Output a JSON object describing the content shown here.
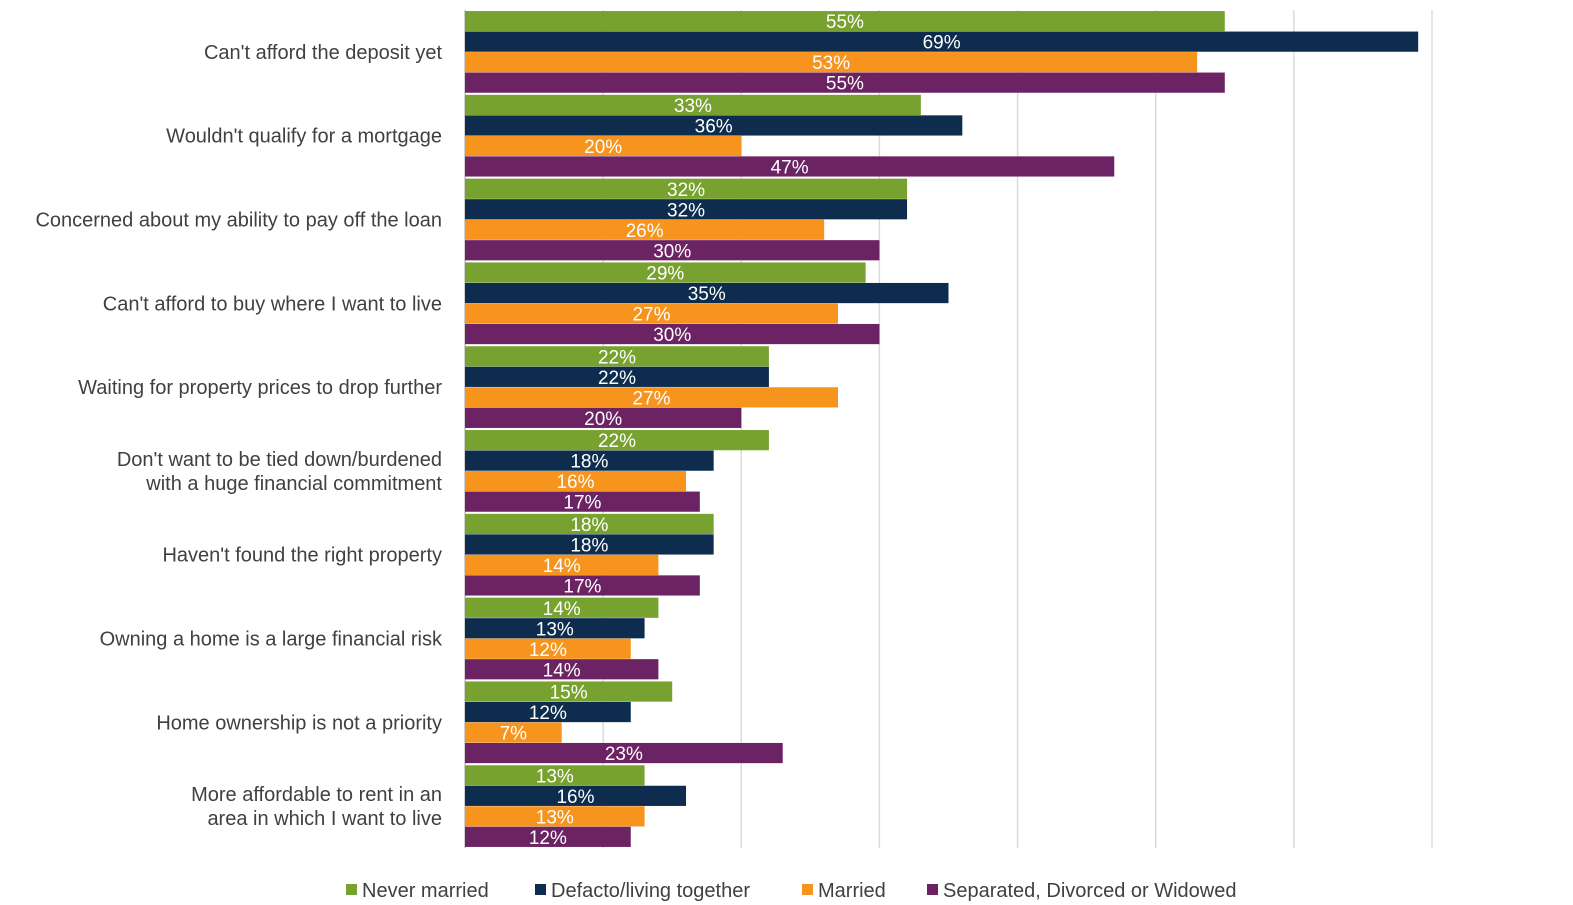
{
  "chart_data": {
    "type": "bar",
    "orientation": "horizontal",
    "title": "",
    "xlabel": "",
    "ylabel": "",
    "xlim": [
      0,
      70
    ],
    "grid": true,
    "legend_position": "bottom",
    "show_value_labels": true,
    "value_suffix": "%",
    "categories": [
      [
        "Can't afford the deposit yet"
      ],
      [
        "Wouldn't qualify for a mortgage"
      ],
      [
        "Concerned about my ability to pay off the loan"
      ],
      [
        "Can't afford to buy where I want to live"
      ],
      [
        "Waiting for property prices to drop further"
      ],
      [
        "Don't want to be tied down/burdened",
        "with a huge financial commitment"
      ],
      [
        "Haven't found the right property"
      ],
      [
        "Owning a home is a large financial risk"
      ],
      [
        "Home ownership is not a priority"
      ],
      [
        "More affordable to rent in an",
        "area in which I want to live"
      ]
    ],
    "series": [
      {
        "name": "Never married",
        "color": "#77a22f",
        "values": [
          55,
          33,
          32,
          29,
          22,
          22,
          18,
          14,
          15,
          13
        ]
      },
      {
        "name": "Defacto/living together",
        "color": "#0e2d4e",
        "values": [
          69,
          36,
          32,
          35,
          22,
          18,
          18,
          13,
          12,
          16
        ]
      },
      {
        "name": "Married",
        "color": "#f7941d",
        "values": [
          53,
          20,
          26,
          27,
          27,
          16,
          14,
          12,
          7,
          13
        ]
      },
      {
        "name": "Separated, Divorced or Widowed",
        "color": "#6c2363",
        "values": [
          55,
          47,
          30,
          30,
          20,
          17,
          17,
          14,
          23,
          12
        ]
      }
    ]
  }
}
